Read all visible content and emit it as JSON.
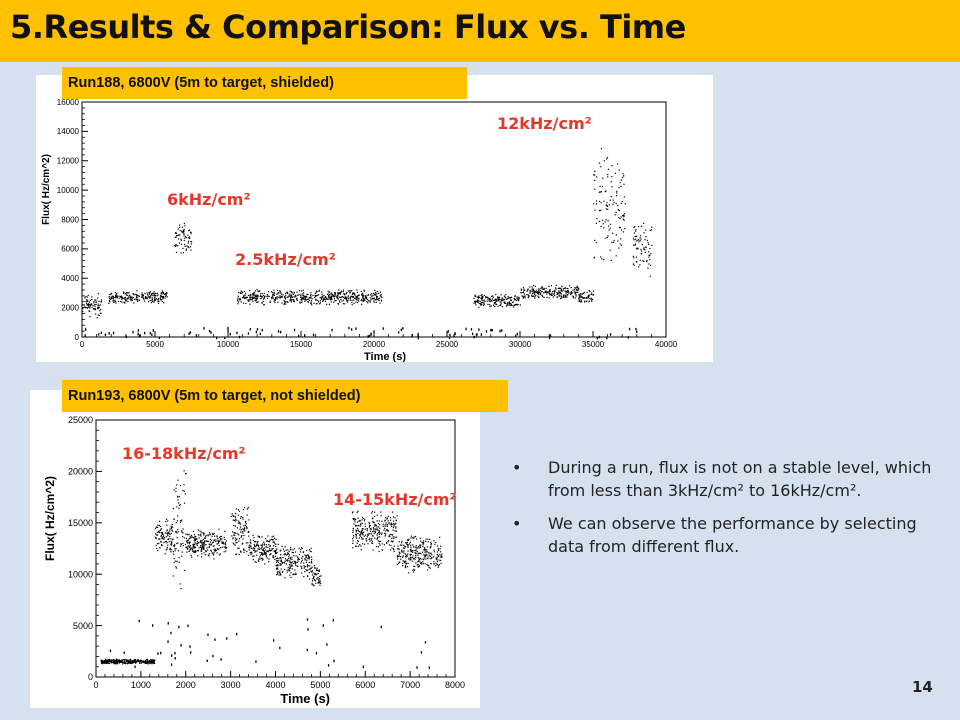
{
  "slide": {
    "title": "5.Results & Comparison: Flux vs. Time",
    "page_number": "14"
  },
  "panels": [
    {
      "label": "Run188, 6800V (5m to target, shielded)",
      "annotations": [
        "6kHz/cm²",
        "2.5kHz/cm²",
        "12kHz/cm²"
      ]
    },
    {
      "label": "Run193, 6800V (5m to target, not shielded)",
      "annotations": [
        "16-18kHz/cm²",
        "14-15kHz/cm²"
      ]
    }
  ],
  "bullets": [
    "During a run, flux is not on a stable level, which from less than  3kHz/cm² to 16kHz/cm².",
    "We can observe the performance by selecting data from different flux."
  ],
  "colors": {
    "title_bar": "#ffc000",
    "background": "#d6e1ef",
    "annotation": "#e8372a",
    "data_points": "#000000"
  },
  "chart_data": [
    {
      "type": "scatter",
      "xlabel": "Time (s)",
      "ylabel": "Flux(  Hz/cm^2)",
      "xlim": [
        0,
        40000
      ],
      "ylim": [
        0,
        16000
      ],
      "xticks": [
        0,
        5000,
        10000,
        15000,
        20000,
        25000,
        30000,
        35000,
        40000
      ],
      "yticks": [
        0,
        2000,
        4000,
        6000,
        8000,
        10000,
        12000,
        14000,
        16000
      ],
      "series": [
        {
          "segments": [
            {
              "x": [
                0,
                1300
              ],
              "y_low": 1200,
              "y_high": 3200
            },
            {
              "x": [
                1800,
                5800
              ],
              "y_low": 2300,
              "y_high": 3200
            },
            {
              "x": [
                6300,
                7500
              ],
              "y_low": 5500,
              "y_high": 8000
            },
            {
              "x": [
                10600,
                20500
              ],
              "y_low": 2200,
              "y_high": 3300
            },
            {
              "x": [
                26800,
                30000
              ],
              "y_low": 2000,
              "y_high": 3000
            },
            {
              "x": [
                30000,
                34000
              ],
              "y_low": 2600,
              "y_high": 3600
            },
            {
              "x": [
                34000,
                35000
              ],
              "y_low": 2200,
              "y_high": 3300
            },
            {
              "x": [
                35000,
                37200
              ],
              "y_low": 4500,
              "y_high": 13500
            },
            {
              "x": [
                37700,
                39000
              ],
              "y_low": 4000,
              "y_high": 8000
            }
          ],
          "sparse_y_range": [
            0,
            700
          ]
        }
      ]
    },
    {
      "type": "scatter",
      "xlabel": "Time (s)",
      "ylabel": "Flux(  Hz/cm^2)",
      "xlim": [
        0,
        8000
      ],
      "ylim": [
        0,
        25000
      ],
      "xticks": [
        0,
        1000,
        2000,
        3000,
        4000,
        5000,
        6000,
        7000,
        8000
      ],
      "yticks": [
        0,
        5000,
        10000,
        15000,
        20000,
        25000
      ],
      "series": [
        {
          "segments": [
            {
              "x": [
                100,
                1300
              ],
              "y_low": 1300,
              "y_high": 1800
            },
            {
              "x": [
                1300,
                1700
              ],
              "y_low": 12000,
              "y_high": 15500
            },
            {
              "x": [
                1700,
                2000
              ],
              "y_low": 8000,
              "y_high": 22000
            },
            {
              "x": [
                2000,
                2900
              ],
              "y_low": 11500,
              "y_high": 14500
            },
            {
              "x": [
                3000,
                3400
              ],
              "y_low": 11000,
              "y_high": 17000
            },
            {
              "x": [
                3400,
                4000
              ],
              "y_low": 11000,
              "y_high": 14000
            },
            {
              "x": [
                4000,
                4800
              ],
              "y_low": 9500,
              "y_high": 13000
            },
            {
              "x": [
                4800,
                5000
              ],
              "y_low": 8500,
              "y_high": 11000
            },
            {
              "x": [
                5700,
                6700
              ],
              "y_low": 12000,
              "y_high": 16500
            },
            {
              "x": [
                6700,
                7700
              ],
              "y_low": 10000,
              "y_high": 14000
            }
          ],
          "sparse_y_range": [
            1000,
            6000
          ]
        }
      ]
    }
  ]
}
